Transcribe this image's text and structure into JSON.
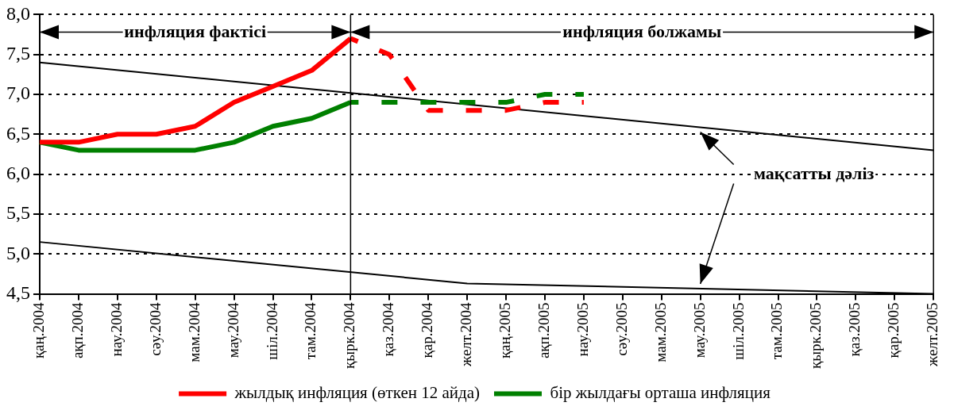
{
  "chart_data": {
    "type": "line",
    "categories": [
      "қаң.2004",
      "ақп.2004",
      "нау.2004",
      "сәу.2004",
      "мам.2004",
      "мау.2004",
      "шіл.2004",
      "там.2004",
      "қырк.2004",
      "қаз.2004",
      "қар.2004",
      "желт.2004",
      "қаң.2005",
      "ақп.2005",
      "нау.2005",
      "сәу.2005",
      "мам.2005",
      "мау.2005",
      "шіл.2005",
      "там.2005",
      "қырк.2005",
      "қаз.2005",
      "қар.2005",
      "желт.2005"
    ],
    "ylim": [
      4.5,
      8.0
    ],
    "yticks": [
      {
        "value": 4.5,
        "label": "4,5"
      },
      {
        "value": 5.0,
        "label": "5,0"
      },
      {
        "value": 5.5,
        "label": "5,5"
      },
      {
        "value": 6.0,
        "label": "6,0"
      },
      {
        "value": 6.5,
        "label": "6,5"
      },
      {
        "value": 7.0,
        "label": "7,0"
      },
      {
        "value": 7.5,
        "label": "7,5"
      },
      {
        "value": 8.0,
        "label": "8,0"
      }
    ],
    "grid": "y",
    "legend": "bottom",
    "marker": "none",
    "line_style": "solid",
    "series": [
      {
        "name": "жылдық инфляция (өткен 12 айда)",
        "color": "#ff0000",
        "values": [
          6.4,
          6.4,
          6.5,
          6.5,
          6.6,
          6.9,
          7.1,
          7.3,
          7.7,
          null,
          null,
          null,
          null,
          null,
          null,
          null,
          null,
          null,
          null,
          null,
          null,
          null,
          null,
          null
        ]
      },
      {
        "color": "#ff0000",
        "line_style": "dashed",
        "values": [
          null,
          null,
          null,
          null,
          null,
          null,
          null,
          null,
          7.7,
          7.5,
          6.8,
          6.8,
          6.8,
          6.9,
          6.9,
          null,
          null,
          null,
          null,
          null,
          null,
          null,
          null,
          null
        ]
      },
      {
        "name": "бір жылдағы орташа инфляция",
        "color": "#008000",
        "values": [
          6.4,
          6.3,
          6.3,
          6.3,
          6.3,
          6.4,
          6.6,
          6.7,
          6.9,
          null,
          null,
          null,
          null,
          null,
          null,
          null,
          null,
          null,
          null,
          null,
          null,
          null,
          null,
          null
        ]
      },
      {
        "color": "#008000",
        "line_style": "dashed",
        "values": [
          null,
          null,
          null,
          null,
          null,
          null,
          null,
          null,
          6.9,
          6.9,
          6.9,
          6.9,
          6.9,
          7.0,
          7.0,
          null,
          null,
          null,
          null,
          null,
          null,
          null,
          null,
          null
        ]
      },
      {
        "color": "#000000",
        "x": [
          "қаң.2004",
          "желт.2005"
        ],
        "values": [
          7.4,
          6.3
        ]
      },
      {
        "color": "#000000",
        "x": [
          "қаң.2004",
          "желт.2004",
          "желт.2005"
        ],
        "values": [
          5.15,
          4.63,
          4.5
        ]
      }
    ],
    "ref_lines": [
      {
        "axis": "x",
        "value": "қырк.2004",
        "color": "#000000"
      }
    ],
    "annotations": [
      "инфляция фактісі",
      "инфляция болжамы",
      "мақсатты дәліз"
    ]
  }
}
